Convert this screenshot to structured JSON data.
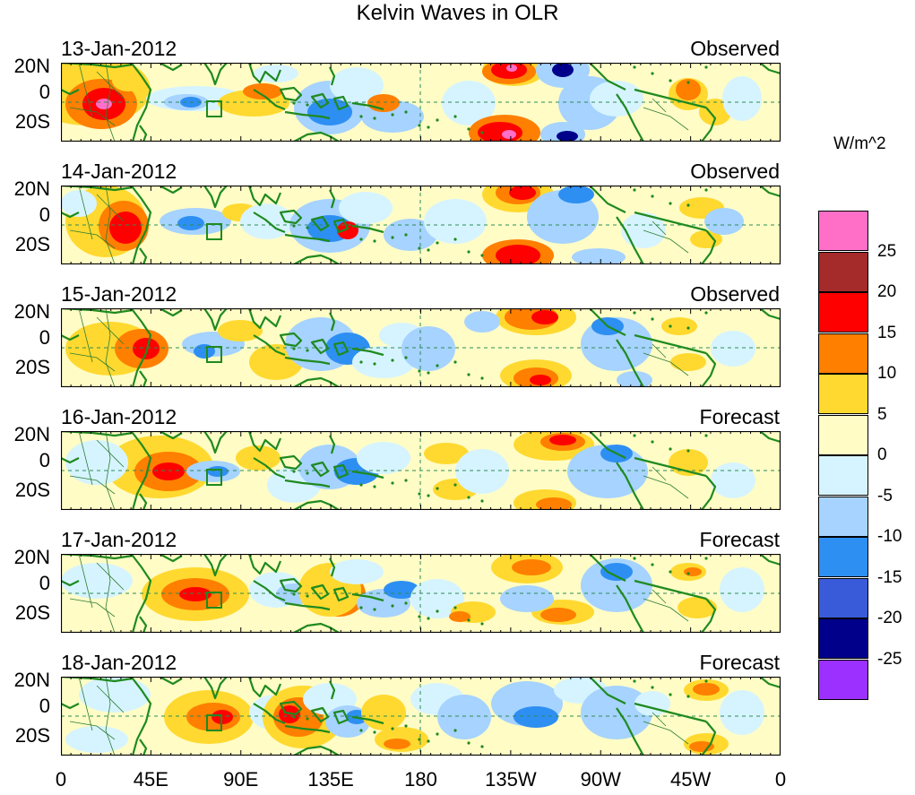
{
  "title": "Kelvin Waves in OLR",
  "units": "W/m^2",
  "lat_labels": [
    "20N",
    "0",
    "20S"
  ],
  "lon_labels": [
    "0",
    "45E",
    "90E",
    "135E",
    "180",
    "135W",
    "90W",
    "45W",
    "0"
  ],
  "panels": [
    {
      "date": "13-Jan-2012",
      "status": "Observed"
    },
    {
      "date": "14-Jan-2012",
      "status": "Observed"
    },
    {
      "date": "15-Jan-2012",
      "status": "Observed"
    },
    {
      "date": "16-Jan-2012",
      "status": "Forecast"
    },
    {
      "date": "17-Jan-2012",
      "status": "Forecast"
    },
    {
      "date": "18-Jan-2012",
      "status": "Forecast"
    }
  ],
  "legend": {
    "labels": [
      "25",
      "20",
      "15",
      "10",
      "5",
      "0",
      "-5",
      "-10",
      "-15",
      "-20",
      "-25"
    ],
    "colors": [
      "#ff6ec7",
      "#a52a2a",
      "#ff0000",
      "#ff7f00",
      "#ffd92f",
      "#fffcc6",
      "#d6f4ff",
      "#a6d3ff",
      "#2e8ff2",
      "#3a5bd9",
      "#00008b",
      "#9b30ff"
    ]
  },
  "colors": {
    "coast": "#1f8a1f",
    "border": "#2e7d32",
    "dashed": "#2e8b57"
  }
}
